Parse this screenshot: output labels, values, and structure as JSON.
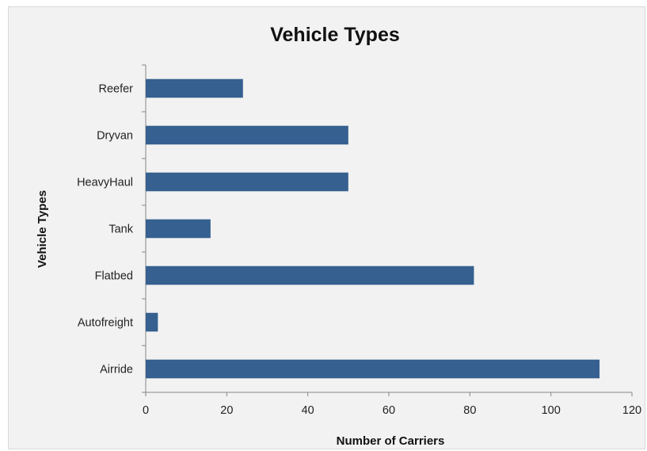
{
  "chart_data": {
    "type": "bar",
    "orientation": "horizontal",
    "title": "Vehicle Types",
    "xlabel": "Number of Carriers",
    "ylabel": "Vehicle Types",
    "categories": [
      "Airride",
      "Autofreight",
      "Flatbed",
      "Tank",
      "HeavyHaul",
      "Dryvan",
      "Reefer"
    ],
    "values": [
      112,
      3,
      81,
      16,
      50,
      50,
      24
    ],
    "xlim": [
      0,
      120
    ],
    "xticks": [
      0,
      20,
      40,
      60,
      80,
      100,
      120
    ],
    "grid": false,
    "legend": "none",
    "bar_color": "#35608f",
    "background_color": "#f2f2f2"
  }
}
